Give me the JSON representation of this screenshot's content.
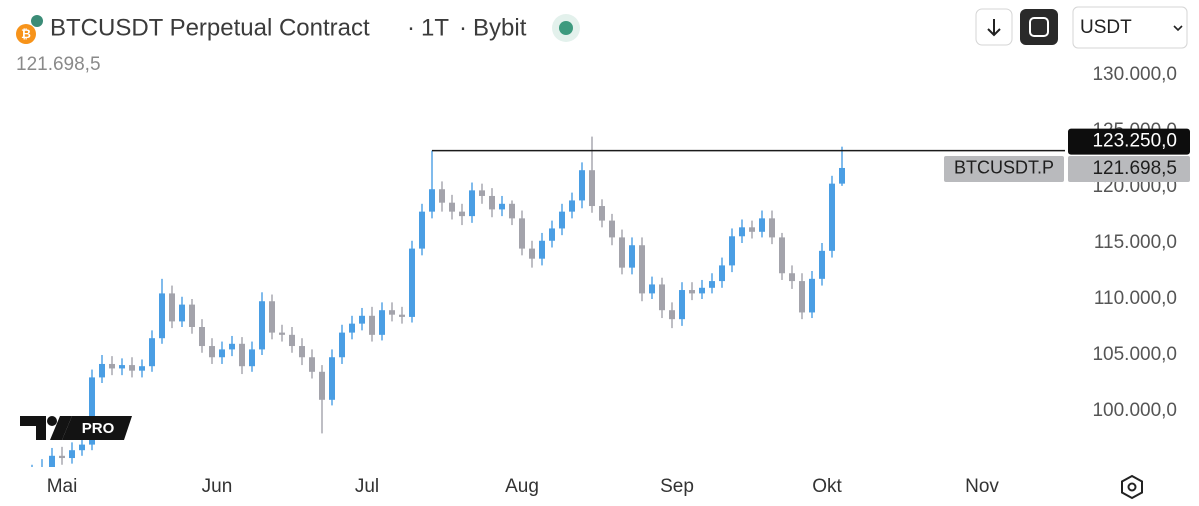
{
  "header": {
    "symbol_name": "BTCUSDT Perpetual Contract",
    "interval": "1T",
    "exchange": "Bybit",
    "currency_select": "USDT"
  },
  "logo_badge": "PRO",
  "chart_data": {
    "type": "candlestick",
    "up_color": "#4a9ee4",
    "down_color": "#a3a3ab",
    "x": [
      -6,
      -4,
      -2,
      0,
      2,
      4,
      6,
      8,
      10,
      12,
      14,
      16,
      18,
      20,
      22,
      24,
      26,
      28,
      30,
      32,
      34,
      36,
      38,
      40,
      42,
      44,
      46,
      48,
      50,
      52,
      54,
      56,
      58,
      60,
      62,
      64,
      66,
      68,
      70,
      72,
      74,
      76,
      78,
      80,
      82,
      84,
      86,
      88,
      90,
      92,
      94,
      96,
      98,
      100,
      102,
      104,
      106,
      108,
      110,
      112,
      114,
      116,
      118,
      120,
      122,
      124,
      126,
      128,
      130,
      132,
      134,
      136,
      138,
      140,
      142,
      144,
      146,
      148,
      150,
      152,
      154,
      156
    ],
    "open": [
      94000,
      94500,
      95000,
      96000,
      95800,
      96500,
      97000,
      103000,
      104200,
      103800,
      104100,
      103600,
      104000,
      106500,
      110500,
      108000,
      109500,
      107500,
      105800,
      104800,
      105500,
      106000,
      104000,
      105500,
      109800,
      107000,
      106800,
      105800,
      104800,
      103500,
      101000,
      104800,
      107000,
      107800,
      108500,
      106800,
      109000,
      108600,
      108400,
      114500,
      117800,
      119800,
      118600,
      117800,
      117400,
      119700,
      119200,
      118000,
      118500,
      117200,
      114500,
      113600,
      115200,
      116300,
      117800,
      118800,
      121500,
      118300,
      117000,
      115500,
      112800,
      114800,
      110500,
      111300,
      109000,
      108200,
      110800,
      110500,
      111000,
      111600,
      113000,
      115600,
      116400,
      116000,
      117200,
      115500,
      112300,
      111600,
      108800,
      111800,
      114300,
      120300
    ],
    "high": [
      95200,
      95700,
      96700,
      96800,
      97200,
      97700,
      103700,
      105000,
      104900,
      104700,
      104800,
      104600,
      107200,
      111800,
      111200,
      110200,
      110000,
      108200,
      106500,
      106200,
      106700,
      106600,
      106200,
      110600,
      110400,
      107700,
      107500,
      106500,
      105500,
      104100,
      105500,
      107700,
      108500,
      109200,
      109300,
      109700,
      109700,
      109300,
      115200,
      118500,
      123250,
      120500,
      119300,
      118500,
      120400,
      120300,
      119900,
      119200,
      118800,
      117900,
      115200,
      115900,
      117000,
      118500,
      119500,
      122200,
      124500,
      118900,
      117600,
      116200,
      115500,
      115500,
      112000,
      111900,
      109700,
      111500,
      111500,
      111700,
      112300,
      113700,
      116300,
      117100,
      117000,
      117900,
      117900,
      115900,
      113000,
      112300,
      112500,
      115000,
      121000,
      123600
    ],
    "low": [
      93500,
      93900,
      94500,
      95200,
      95300,
      96000,
      96500,
      102500,
      103200,
      103200,
      103000,
      103000,
      103500,
      106000,
      107400,
      107500,
      106900,
      105200,
      104200,
      104200,
      104900,
      103300,
      103500,
      105000,
      106400,
      106200,
      105200,
      104100,
      102900,
      98000,
      100500,
      104200,
      106400,
      107200,
      106200,
      106300,
      108000,
      107800,
      107900,
      113900,
      117200,
      117800,
      117100,
      116600,
      116800,
      118500,
      117300,
      117400,
      116600,
      113900,
      112800,
      113000,
      114600,
      115700,
      117200,
      118100,
      117700,
      116400,
      114800,
      112200,
      112200,
      109800,
      110000,
      108300,
      107400,
      107600,
      109900,
      110000,
      110500,
      111000,
      112400,
      115000,
      115400,
      115500,
      114900,
      111700,
      110900,
      108200,
      108300,
      111200,
      113700,
      120100
    ],
    "close": [
      94500,
      95000,
      96000,
      95800,
      96500,
      97000,
      103000,
      104200,
      103800,
      104100,
      103600,
      104000,
      106500,
      110500,
      108000,
      109500,
      107500,
      105800,
      104800,
      105500,
      106000,
      104000,
      105500,
      109800,
      107000,
      106800,
      105800,
      104800,
      103500,
      101000,
      104800,
      107000,
      107800,
      108500,
      106800,
      109000,
      108600,
      108400,
      114500,
      117800,
      119800,
      118600,
      117800,
      117400,
      119700,
      119200,
      118000,
      118500,
      117200,
      114500,
      113600,
      115200,
      116300,
      117800,
      118800,
      121500,
      118300,
      117000,
      115500,
      112800,
      114800,
      110500,
      111300,
      109000,
      108200,
      110800,
      110500,
      111000,
      111600,
      113000,
      115600,
      116400,
      116000,
      117200,
      115500,
      112300,
      111600,
      108800,
      111800,
      114300,
      120300,
      121698.5
    ],
    "xlim": [
      -12.4,
      200.6
    ],
    "xticks": [
      {
        "value": 0,
        "label": "Mai"
      },
      {
        "value": 31,
        "label": "Jun"
      },
      {
        "value": 61,
        "label": "Jul"
      },
      {
        "value": 92,
        "label": "Aug"
      },
      {
        "value": 123,
        "label": "Sep"
      },
      {
        "value": 153,
        "label": "Okt"
      },
      {
        "value": 184,
        "label": "Nov"
      }
    ],
    "ylim": [
      95000,
      132000
    ],
    "yticks": [
      {
        "value": 100000,
        "label": "100.000,0"
      },
      {
        "value": 105000,
        "label": "105.000,0"
      },
      {
        "value": 110000,
        "label": "110.000,0"
      },
      {
        "value": 115000,
        "label": "115.000,0"
      },
      {
        "value": 120000,
        "label": "120.000,0"
      },
      {
        "value": 125000,
        "label": "125.000,0"
      },
      {
        "value": 130000,
        "label": "130.000,0"
      }
    ],
    "horizontal_line": {
      "value": 123250,
      "label": "123.250,0"
    },
    "last_price": {
      "value": 121698.5,
      "label": "121.698,5",
      "symbol": "BTCUSDT.P"
    }
  }
}
